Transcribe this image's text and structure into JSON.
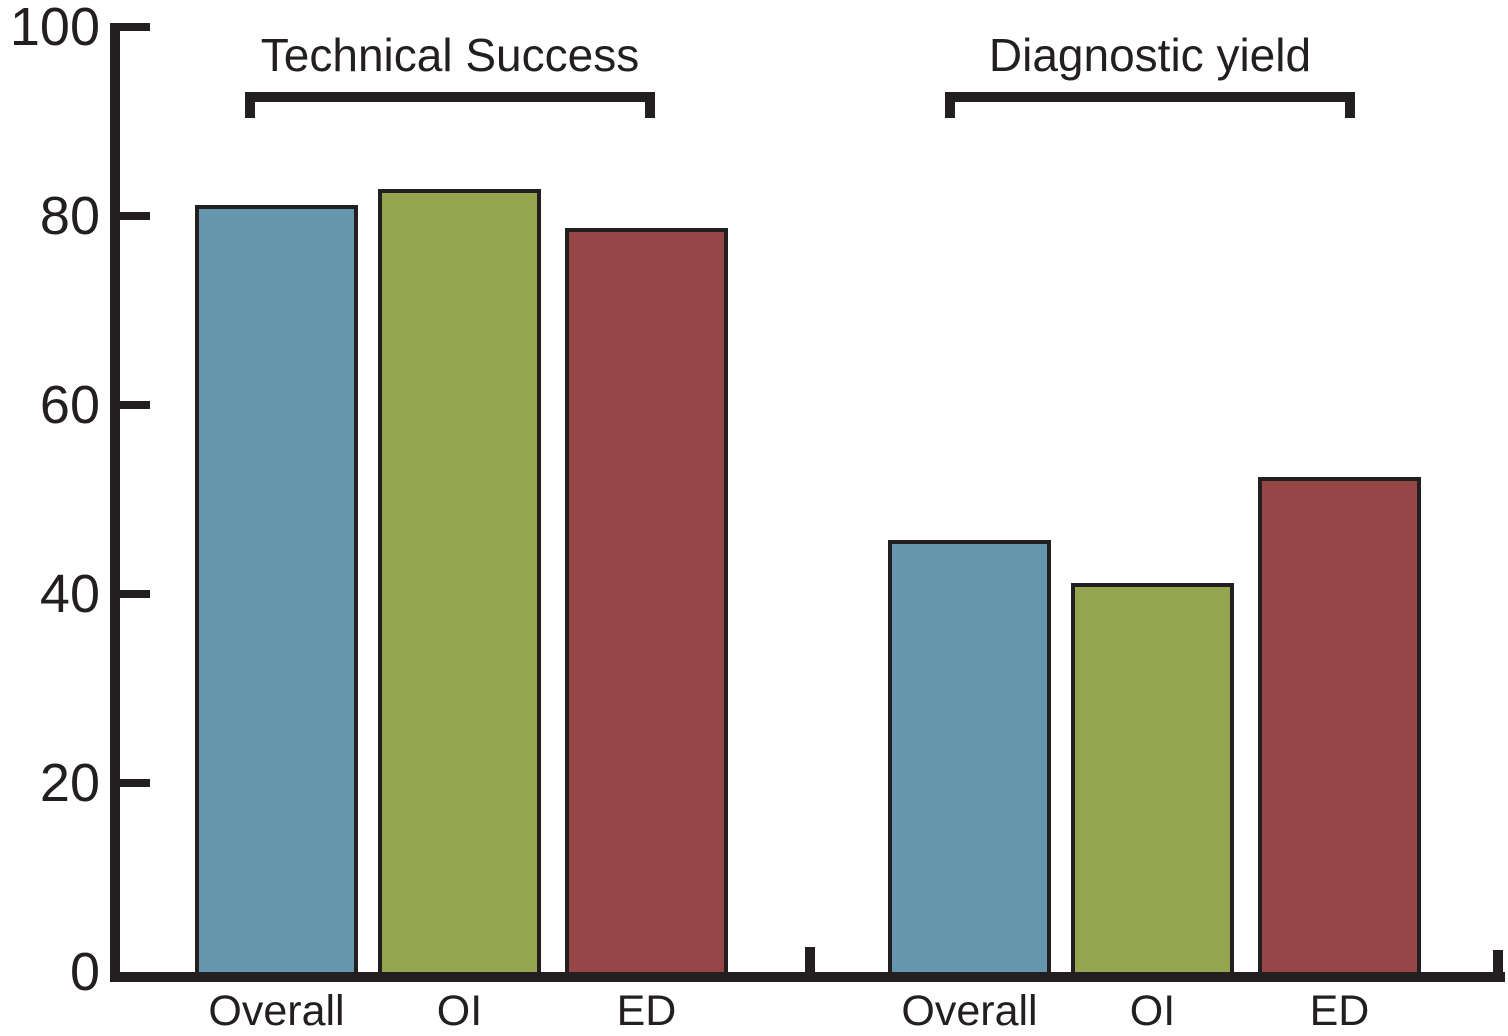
{
  "chart_data": {
    "type": "bar",
    "title": "",
    "xlabel": "",
    "ylabel": "",
    "ylim": [
      0,
      100
    ],
    "yticks": [
      0,
      20,
      40,
      60,
      80,
      100
    ],
    "grid": false,
    "legend": "none",
    "groups": [
      {
        "title": "Technical Success",
        "categories": [
          "Overall",
          "OI",
          "ED"
        ],
        "values": [
          81.2,
          82.9,
          78.7
        ]
      },
      {
        "title": "Diagnostic yield",
        "categories": [
          "Overall",
          "OI",
          "ED"
        ],
        "values": [
          45.7,
          41.2,
          52.4
        ]
      }
    ],
    "series_colors": {
      "Overall": "#6496AD",
      "OI": "#94A44F",
      "ED": "#964646"
    },
    "bar_border_color": "#231F20",
    "axis_color": "#231F20",
    "background_color": "#FFFFFF"
  }
}
